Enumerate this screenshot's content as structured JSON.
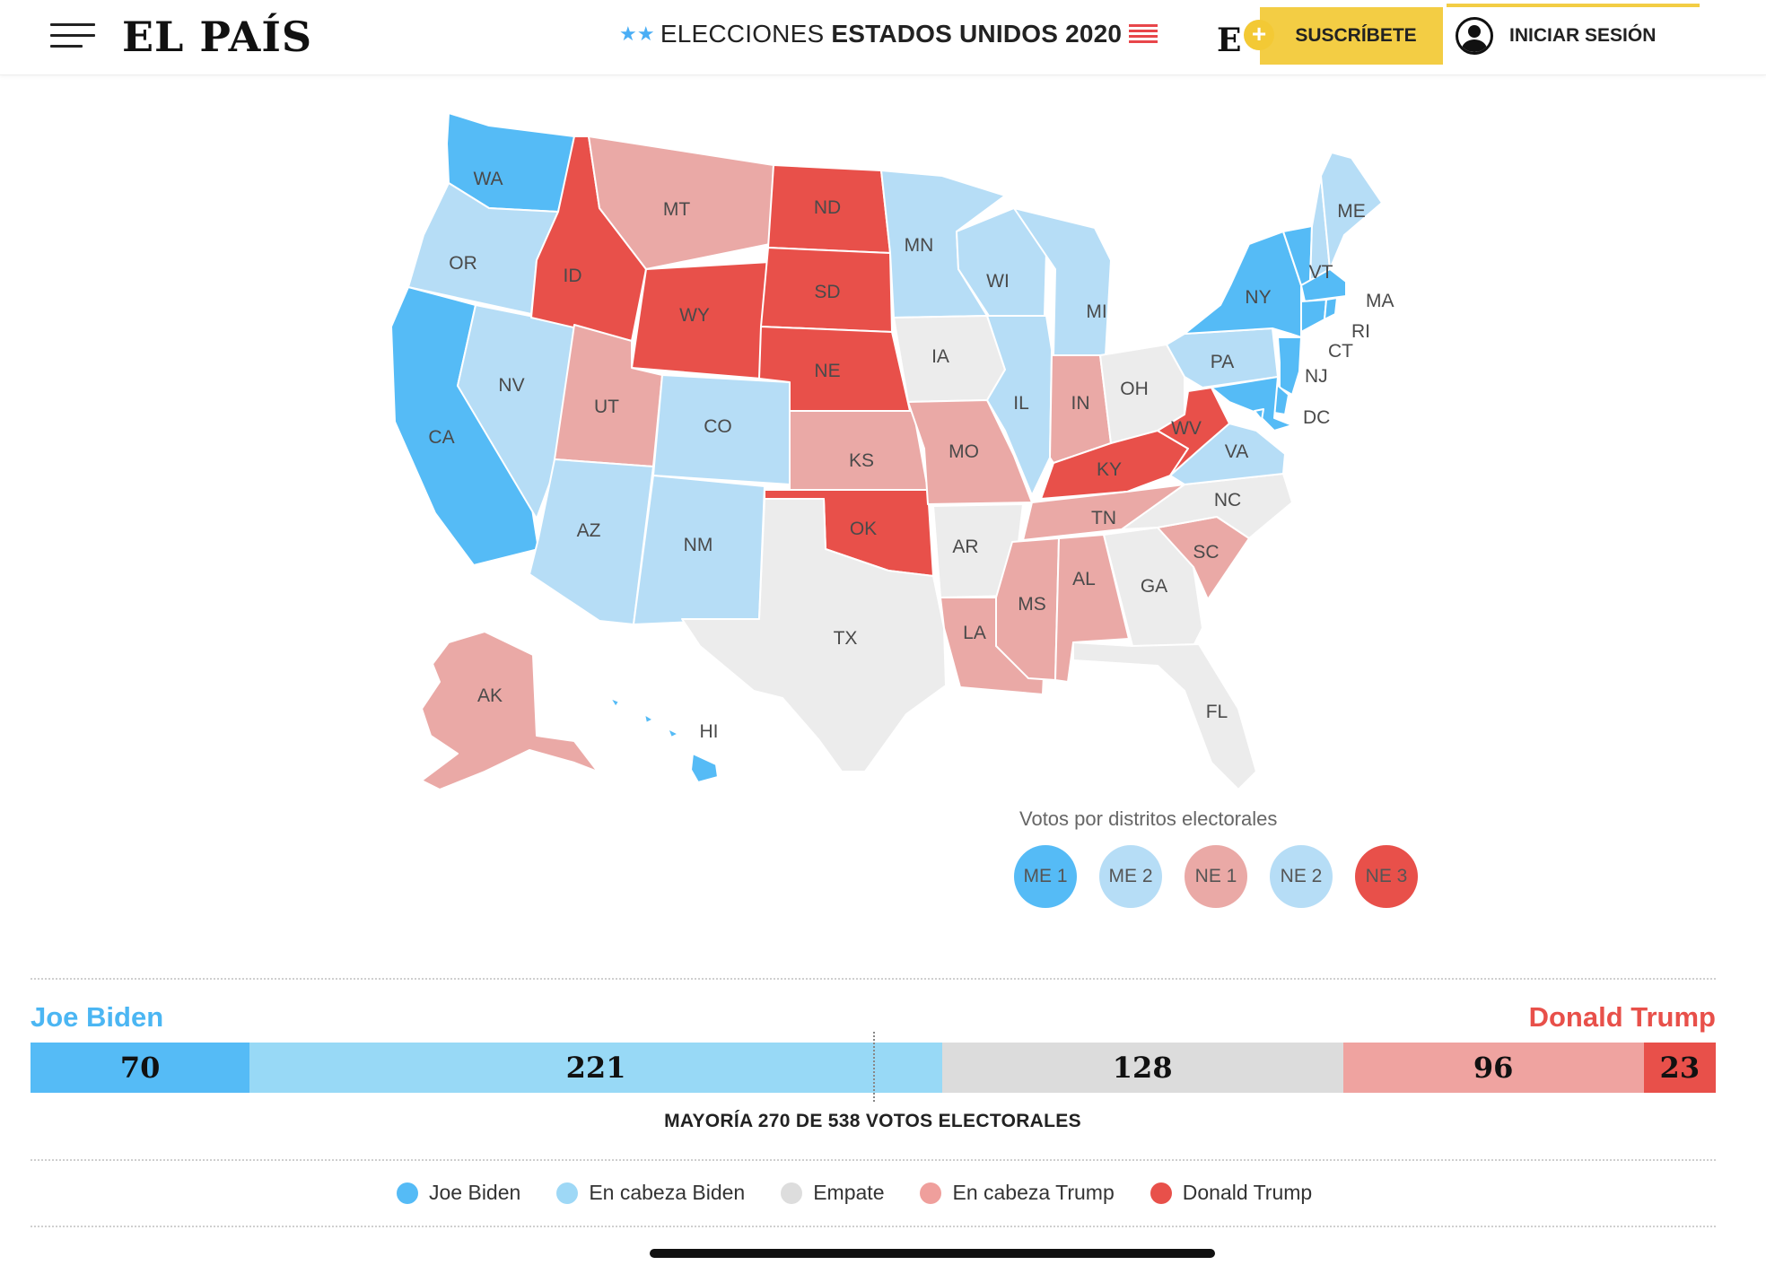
{
  "header": {
    "logo": "EL PAÍS",
    "election_stars": "★★",
    "election_light": "ELECCIONES",
    "election_bold": "ESTADOS UNIDOS 2020",
    "eplus_letter": "E",
    "eplus_plus": "+",
    "subscribe_label": "SUSCRÍBETE",
    "login_label": "INICIAR SESIÓN"
  },
  "colors": {
    "biden": "#55bbf6",
    "lean_biden": "#b6ddf6",
    "tie": "#ececec",
    "lean_trump": "#eaa9a6",
    "trump": "#e8504a",
    "accent_yellow": "#f3cd44"
  },
  "map": {
    "states": {
      "WA": {
        "label": "WA",
        "status": "biden"
      },
      "OR": {
        "label": "OR",
        "status": "lean_biden"
      },
      "CA": {
        "label": "CA",
        "status": "biden"
      },
      "NV": {
        "label": "NV",
        "status": "lean_biden"
      },
      "ID": {
        "label": "ID",
        "status": "trump"
      },
      "MT": {
        "label": "MT",
        "status": "lean_trump"
      },
      "WY": {
        "label": "WY",
        "status": "trump"
      },
      "UT": {
        "label": "UT",
        "status": "lean_trump"
      },
      "AZ": {
        "label": "AZ",
        "status": "lean_biden"
      },
      "CO": {
        "label": "CO",
        "status": "lean_biden"
      },
      "NM": {
        "label": "NM",
        "status": "lean_biden"
      },
      "ND": {
        "label": "ND",
        "status": "trump"
      },
      "SD": {
        "label": "SD",
        "status": "trump"
      },
      "NE": {
        "label": "NE",
        "status": "trump"
      },
      "KS": {
        "label": "KS",
        "status": "lean_trump"
      },
      "OK": {
        "label": "OK",
        "status": "trump"
      },
      "TX": {
        "label": "TX",
        "status": "tie"
      },
      "MN": {
        "label": "MN",
        "status": "lean_biden"
      },
      "IA": {
        "label": "IA",
        "status": "tie"
      },
      "MO": {
        "label": "MO",
        "status": "lean_trump"
      },
      "AR": {
        "label": "AR",
        "status": "tie"
      },
      "LA": {
        "label": "LA",
        "status": "lean_trump"
      },
      "WI": {
        "label": "WI",
        "status": "lean_biden"
      },
      "IL": {
        "label": "IL",
        "status": "lean_biden"
      },
      "MI": {
        "label": "MI",
        "status": "lean_biden"
      },
      "IN": {
        "label": "IN",
        "status": "lean_trump"
      },
      "OH": {
        "label": "OH",
        "status": "tie"
      },
      "KY": {
        "label": "KY",
        "status": "trump"
      },
      "TN": {
        "label": "TN",
        "status": "lean_trump"
      },
      "MS": {
        "label": "MS",
        "status": "lean_trump"
      },
      "AL": {
        "label": "AL",
        "status": "lean_trump"
      },
      "GA": {
        "label": "GA",
        "status": "tie"
      },
      "FL": {
        "label": "FL",
        "status": "tie"
      },
      "SC": {
        "label": "SC",
        "status": "lean_trump"
      },
      "NC": {
        "label": "NC",
        "status": "tie"
      },
      "VA": {
        "label": "VA",
        "status": "lean_biden"
      },
      "WV": {
        "label": "WV",
        "status": "trump"
      },
      "PA": {
        "label": "PA",
        "status": "lean_biden"
      },
      "NY": {
        "label": "NY",
        "status": "biden"
      },
      "VT": {
        "label": "VT",
        "status": "biden"
      },
      "NH": {
        "label": "",
        "status": "lean_biden"
      },
      "ME": {
        "label": "ME",
        "status": "lean_biden"
      },
      "MA": {
        "label": "MA",
        "status": "biden"
      },
      "RI": {
        "label": "RI",
        "status": "biden"
      },
      "CT": {
        "label": "CT",
        "status": "biden"
      },
      "NJ": {
        "label": "NJ",
        "status": "biden"
      },
      "DE": {
        "label": "",
        "status": "biden"
      },
      "MD": {
        "label": "",
        "status": "biden"
      },
      "DC": {
        "label": "DC",
        "status": "biden"
      },
      "AK": {
        "label": "AK",
        "status": "lean_trump"
      },
      "HI": {
        "label": "HI",
        "status": "biden"
      }
    }
  },
  "districts": {
    "title": "Votos por distritos electorales",
    "items": [
      {
        "label": "ME 1",
        "status": "biden"
      },
      {
        "label": "ME 2",
        "status": "lean_biden"
      },
      {
        "label": "NE 1",
        "status": "lean_trump"
      },
      {
        "label": "NE 2",
        "status": "lean_biden"
      },
      {
        "label": "NE 3",
        "status": "trump"
      }
    ]
  },
  "tally": {
    "left_candidate": "Joe Biden",
    "right_candidate": "Donald Trump",
    "majority_text": "MAYORÍA 270 DE 538 VOTOS ELECTORALES",
    "segments": [
      {
        "value": 70,
        "status": "biden"
      },
      {
        "value": 221,
        "status": "lean_biden"
      },
      {
        "value": 128,
        "status": "tie"
      },
      {
        "value": 96,
        "status": "lean_trump"
      },
      {
        "value": 23,
        "status": "trump"
      }
    ],
    "total": 538,
    "majority": 270
  },
  "legend": [
    {
      "label": "Joe Biden",
      "status": "biden"
    },
    {
      "label": "En cabeza Biden",
      "status": "lean_biden"
    },
    {
      "label": "Empate",
      "status": "tie"
    },
    {
      "label": "En cabeza Trump",
      "status": "lean_trump"
    },
    {
      "label": "Donald Trump",
      "status": "trump"
    }
  ]
}
